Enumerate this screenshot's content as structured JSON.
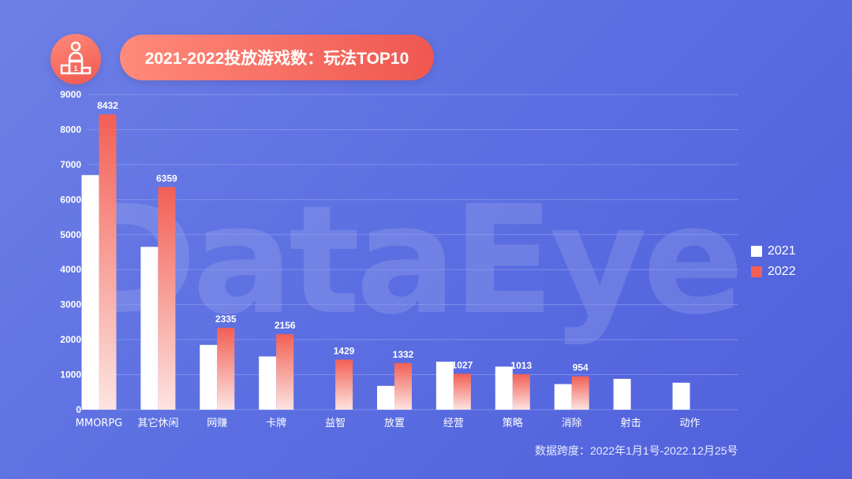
{
  "header": {
    "title": "2021-2022投放游戏数：玩法TOP10",
    "icon": "podium-icon",
    "icon_rank_label": "1"
  },
  "watermark": "DataEye",
  "footnote": "数据跨度：2022年1月1号-2022.12月25号",
  "legend": [
    {
      "label": "2021",
      "color": "#ffffff"
    },
    {
      "label": "2022",
      "color": "#f25f55"
    }
  ],
  "colors": {
    "bar_2021": "#ffffff",
    "bar_2022_top": "#f25f55",
    "bar_2022_bottom": "#fde4e1",
    "gridline": "#8a99ee",
    "axis_text": "#ffffff"
  },
  "chart_data": {
    "type": "bar",
    "title": "2021-2022投放游戏数：玩法TOP10",
    "xlabel": "",
    "ylabel": "",
    "ylim": [
      0,
      9000
    ],
    "yticks": [
      0,
      1000,
      2000,
      3000,
      4000,
      5000,
      6000,
      7000,
      8000,
      9000
    ],
    "grid": true,
    "legend_position": "right",
    "categories": [
      "MMORPG",
      "其它休闲",
      "网赚",
      "卡牌",
      "益智",
      "放置",
      "经营",
      "策略",
      "消除",
      "射击",
      "动作"
    ],
    "series": [
      {
        "name": "2021",
        "values": [
          6700,
          4650,
          1850,
          1520,
          null,
          680,
          1370,
          1230,
          730,
          880,
          770
        ],
        "labels": [
          null,
          null,
          null,
          null,
          null,
          null,
          null,
          null,
          null,
          null,
          null
        ]
      },
      {
        "name": "2022",
        "values": [
          8432,
          6359,
          2335,
          2156,
          1429,
          1332,
          1027,
          1013,
          954,
          null,
          null
        ],
        "labels": [
          "8432",
          "6359",
          "2335",
          "2156",
          "1429",
          "1332",
          "1027",
          "1013",
          "954",
          null,
          null
        ]
      }
    ]
  }
}
